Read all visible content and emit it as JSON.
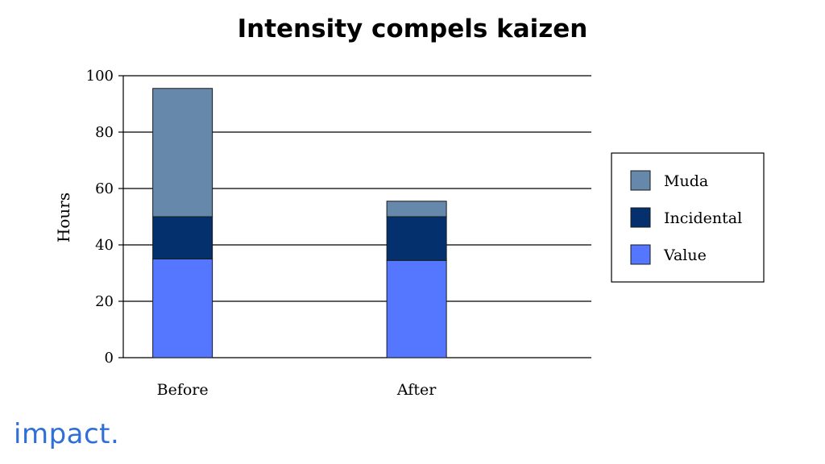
{
  "slide": {
    "title": "Intensity compels kaizen",
    "logo_text": "impact",
    "logo_dot": "."
  },
  "colors": {
    "muda": "#6688aa",
    "incidental": "#04306e",
    "value": "#5577ff",
    "logo": "#2f6fd6"
  },
  "chart_data": {
    "type": "bar",
    "stacked": true,
    "title": "",
    "xlabel": "",
    "ylabel": "Hours",
    "ylim": [
      0,
      100
    ],
    "yticks": [
      0,
      20,
      40,
      60,
      80,
      100
    ],
    "grid": true,
    "legend_position": "right",
    "categories": [
      "Before",
      "After"
    ],
    "series": [
      {
        "name": "Value",
        "values": [
          35,
          34.5
        ],
        "color": "#5577ff"
      },
      {
        "name": "Incidental",
        "values": [
          15,
          15.5
        ],
        "color": "#04306e"
      },
      {
        "name": "Muda",
        "values": [
          45.5,
          5.5
        ],
        "color": "#6688aa"
      }
    ],
    "legend_order": [
      "Muda",
      "Incidental",
      "Value"
    ]
  }
}
